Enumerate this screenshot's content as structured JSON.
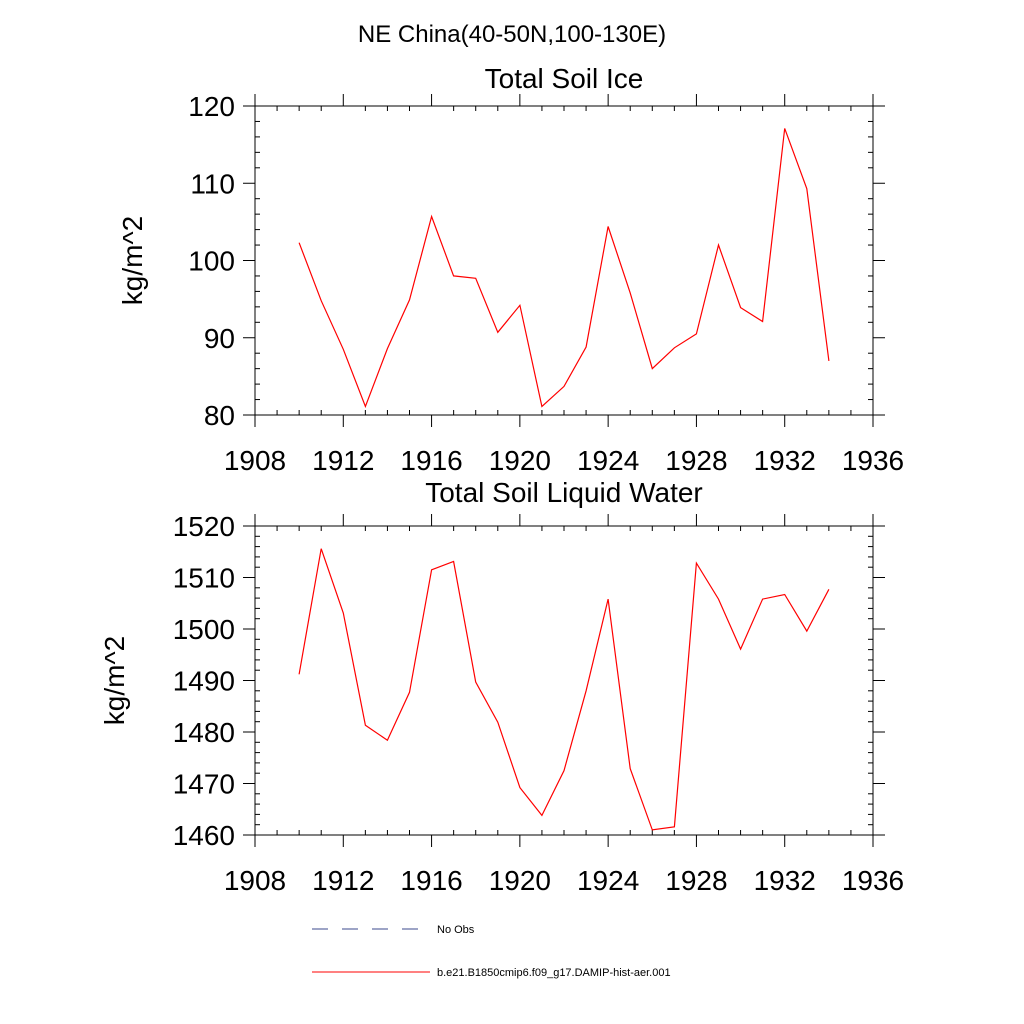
{
  "figure_title": "NE China(40-50N,100-130E)",
  "legend": {
    "entries": [
      {
        "label": "No Obs",
        "color": "#3b4a8c",
        "dash": "dashed"
      },
      {
        "label": "b.e21.B1850cmip6.f09_g17.DAMIP-hist-aer.001",
        "color": "#ff0000",
        "dash": "solid"
      }
    ]
  },
  "chart_data": [
    {
      "type": "line",
      "title": "Total Soil Ice",
      "xlabel": "",
      "ylabel": "kg/m^2",
      "xlim": [
        1908,
        1936
      ],
      "ylim": [
        80,
        120
      ],
      "xticks": [
        1908,
        1912,
        1916,
        1920,
        1924,
        1928,
        1932,
        1936
      ],
      "yticks": [
        80,
        90,
        100,
        110,
        120
      ],
      "grid": false,
      "legend_placement": "bottom",
      "x": [
        1910,
        1911,
        1912,
        1913,
        1914,
        1915,
        1916,
        1917,
        1918,
        1919,
        1920,
        1921,
        1922,
        1923,
        1924,
        1925,
        1926,
        1927,
        1928,
        1929,
        1930,
        1931,
        1932,
        1933,
        1934
      ],
      "series": [
        {
          "name": "b.e21.B1850cmip6.f09_g17.DAMIP-hist-aer.001",
          "color": "#ff0000",
          "values": [
            102.3,
            94.8,
            88.5,
            81.1,
            88.6,
            94.9,
            105.7,
            98.0,
            97.7,
            90.7,
            94.2,
            81.1,
            83.7,
            88.8,
            104.4,
            95.8,
            86.0,
            88.7,
            90.5,
            102.0,
            93.9,
            92.1,
            117.1,
            109.3,
            87.0
          ]
        }
      ]
    },
    {
      "type": "line",
      "title": "Total Soil Liquid Water",
      "xlabel": "",
      "ylabel": "kg/m^2",
      "xlim": [
        1908,
        1936
      ],
      "ylim": [
        1460,
        1520
      ],
      "xticks": [
        1908,
        1912,
        1916,
        1920,
        1924,
        1928,
        1932,
        1936
      ],
      "yticks": [
        1460,
        1470,
        1480,
        1490,
        1500,
        1510,
        1520
      ],
      "grid": false,
      "legend_placement": "bottom",
      "x": [
        1910,
        1911,
        1912,
        1913,
        1914,
        1915,
        1916,
        1917,
        1918,
        1919,
        1920,
        1921,
        1922,
        1923,
        1924,
        1925,
        1926,
        1927,
        1928,
        1929,
        1930,
        1931,
        1932,
        1933,
        1934
      ],
      "series": [
        {
          "name": "b.e21.B1850cmip6.f09_g17.DAMIP-hist-aer.001",
          "color": "#ff0000",
          "values": [
            1491.2,
            1515.6,
            1503.1,
            1481.3,
            1478.4,
            1487.7,
            1511.5,
            1513.1,
            1489.7,
            1481.9,
            1469.2,
            1463.8,
            1472.5,
            1488.0,
            1505.8,
            1472.9,
            1461.0,
            1461.6,
            1512.8,
            1505.8,
            1496.1,
            1505.8,
            1506.7,
            1499.6,
            1507.7
          ]
        }
      ]
    }
  ]
}
